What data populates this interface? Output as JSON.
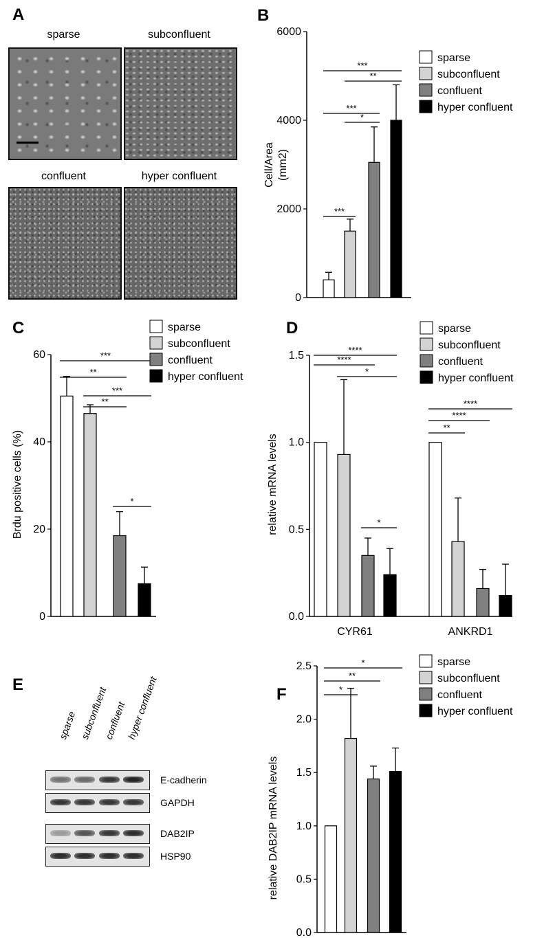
{
  "panels": {
    "A": {
      "letter": "A",
      "images": [
        {
          "label": "sparse"
        },
        {
          "label": "subconfluent"
        },
        {
          "label": "confluent"
        },
        {
          "label": "hyper confluent"
        }
      ]
    },
    "E": {
      "letter": "E",
      "lanes": [
        "sparse",
        "subconfluent",
        "confluent",
        "hyper confluent"
      ],
      "blots": [
        {
          "label": "E-cadherin",
          "intensities": [
            0.55,
            0.6,
            0.85,
            0.95
          ]
        },
        {
          "label": "GAPDH",
          "intensities": [
            0.85,
            0.85,
            0.85,
            0.85
          ]
        },
        {
          "label": "DAB2IP",
          "intensities": [
            0.35,
            0.7,
            0.85,
            0.9
          ]
        },
        {
          "label": "HSP90",
          "intensities": [
            0.9,
            0.9,
            0.9,
            0.9
          ]
        }
      ]
    }
  },
  "legend_items": [
    {
      "label": "sparse",
      "color": "#ffffff"
    },
    {
      "label": "subconfluent",
      "color": "#d3d3d3"
    },
    {
      "label": "confluent",
      "color": "#808080"
    },
    {
      "label": "hyper confluent",
      "color": "#000000"
    }
  ],
  "chart_data": [
    {
      "panel": "B",
      "type": "bar",
      "title": "",
      "ylabel": "Cell/Area (mm2)",
      "ylim": [
        0,
        6000
      ],
      "yticks": [
        0,
        2000,
        4000,
        6000
      ],
      "categories": [
        "sparse",
        "subconfluent",
        "confluent",
        "hyper confluent"
      ],
      "values": [
        400,
        1500,
        3050,
        4000
      ],
      "errors": [
        170,
        270,
        800,
        800
      ],
      "colors": [
        "#ffffff",
        "#d3d3d3",
        "#808080",
        "#000000"
      ],
      "significance": [
        {
          "from": 0,
          "to": 1,
          "label": "***"
        },
        {
          "from": 1,
          "to": 2,
          "label": "*"
        },
        {
          "from": 0,
          "to": 2,
          "label": "***"
        },
        {
          "from": 1,
          "to": 3,
          "label": "**"
        },
        {
          "from": 0,
          "to": 3,
          "label": "***"
        }
      ]
    },
    {
      "panel": "C",
      "type": "bar",
      "title": "",
      "ylabel": "Brdu positive cells (%)",
      "ylim": [
        0,
        60
      ],
      "yticks": [
        0,
        20,
        40,
        60
      ],
      "categories": [
        "sparse",
        "subconfluent",
        "confluent",
        "hyper confluent"
      ],
      "values": [
        50.5,
        46.5,
        18.5,
        7.5
      ],
      "errors": [
        4.5,
        2.0,
        5.5,
        3.8
      ],
      "colors": [
        "#ffffff",
        "#d3d3d3",
        "#808080",
        "#000000"
      ],
      "significance": [
        {
          "from": 2,
          "to": 3,
          "label": "*"
        },
        {
          "from": 1,
          "to": 2,
          "label": "**"
        },
        {
          "from": 1,
          "to": 3,
          "label": "***"
        },
        {
          "from": 0,
          "to": 2,
          "label": "**"
        },
        {
          "from": 0,
          "to": 3,
          "label": "***"
        }
      ]
    },
    {
      "panel": "D",
      "type": "bar",
      "title": "",
      "ylabel": "relative mRNA levels",
      "ylim": [
        0,
        1.5
      ],
      "yticks": [
        "0.0",
        "0.5",
        "1.0",
        "1.5"
      ],
      "groups": [
        "CYR61",
        "ANKRD1"
      ],
      "series": [
        {
          "name": "sparse",
          "values": [
            1.0,
            1.0
          ],
          "errors": [
            0,
            0
          ],
          "color": "#ffffff"
        },
        {
          "name": "subconfluent",
          "values": [
            0.93,
            0.43
          ],
          "errors": [
            0.43,
            0.25
          ],
          "color": "#d3d3d3"
        },
        {
          "name": "confluent",
          "values": [
            0.35,
            0.16
          ],
          "errors": [
            0.1,
            0.11
          ],
          "color": "#808080"
        },
        {
          "name": "hyper confluent",
          "values": [
            0.24,
            0.12
          ],
          "errors": [
            0.15,
            0.18
          ],
          "color": "#000000"
        }
      ],
      "significance": [
        {
          "group": 0,
          "from": 2,
          "to": 3,
          "label": "*"
        },
        {
          "group": 0,
          "from": 1,
          "to": 3,
          "label": "*"
        },
        {
          "group": 0,
          "from": 0,
          "to": 2,
          "label": "****"
        },
        {
          "group": 0,
          "from": 0,
          "to": 3,
          "label": "****"
        },
        {
          "group": 1,
          "from": 0,
          "to": 1,
          "label": "**"
        },
        {
          "group": 1,
          "from": 0,
          "to": 2,
          "label": "****"
        },
        {
          "group": 1,
          "from": 0,
          "to": 3,
          "label": "****"
        }
      ]
    },
    {
      "panel": "F",
      "type": "bar",
      "title": "",
      "ylabel": "relative DAB2IP mRNA levels",
      "ylim": [
        0,
        2.5
      ],
      "yticks": [
        "0.0",
        "0.5",
        "1.0",
        "1.5",
        "2.0",
        "2.5"
      ],
      "categories": [
        "sparse",
        "subconfluent",
        "confluent",
        "hyper confluent"
      ],
      "values": [
        1.0,
        1.82,
        1.44,
        1.51
      ],
      "errors": [
        0,
        0.47,
        0.12,
        0.22
      ],
      "colors": [
        "#ffffff",
        "#d3d3d3",
        "#808080",
        "#000000"
      ],
      "significance": [
        {
          "from": 0,
          "to": 1,
          "label": "*"
        },
        {
          "from": 0,
          "to": 2,
          "label": "**"
        },
        {
          "from": 0,
          "to": 3,
          "label": "*"
        }
      ]
    }
  ]
}
